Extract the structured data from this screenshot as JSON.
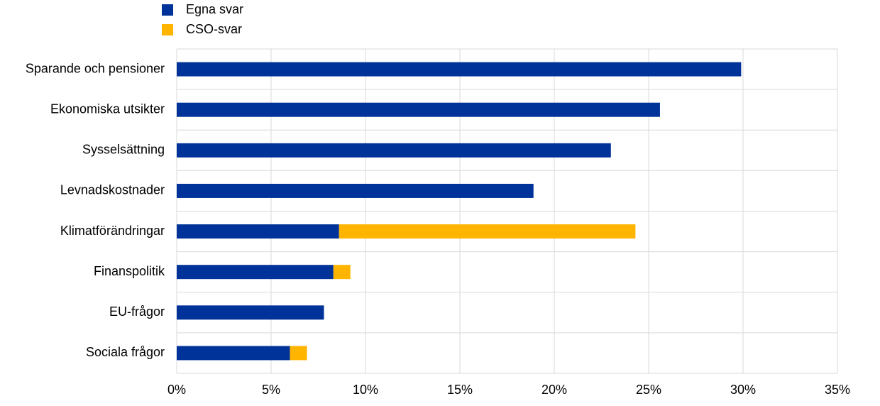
{
  "chart_data": {
    "type": "stacked-bar-horizontal",
    "categories": [
      "Sparande och pensioner",
      "Ekonomiska utsikter",
      "Sysselsättning",
      "Levnadskostnader",
      "Klimatförändringar",
      "Finanspolitik",
      "EU-frågor",
      "Sociala frågor"
    ],
    "series": [
      {
        "name": "Egna svar",
        "color": "#003399",
        "values": [
          29.9,
          25.6,
          23.0,
          18.9,
          8.6,
          8.3,
          7.8,
          6.0
        ]
      },
      {
        "name": "CSO-svar",
        "color": "#ffb400",
        "values": [
          null,
          null,
          null,
          null,
          15.7,
          0.9,
          null,
          0.9
        ]
      }
    ],
    "xlim": [
      0,
      35
    ],
    "xticks": [
      {
        "value": 0,
        "label": "0%"
      },
      {
        "value": 5,
        "label": "5%"
      },
      {
        "value": 10,
        "label": "10%"
      },
      {
        "value": 15,
        "label": "15%"
      },
      {
        "value": 20,
        "label": "20%"
      },
      {
        "value": 25,
        "label": "25%"
      },
      {
        "value": 30,
        "label": "30%"
      },
      {
        "value": 35,
        "label": "35%"
      }
    ],
    "grid": true
  }
}
